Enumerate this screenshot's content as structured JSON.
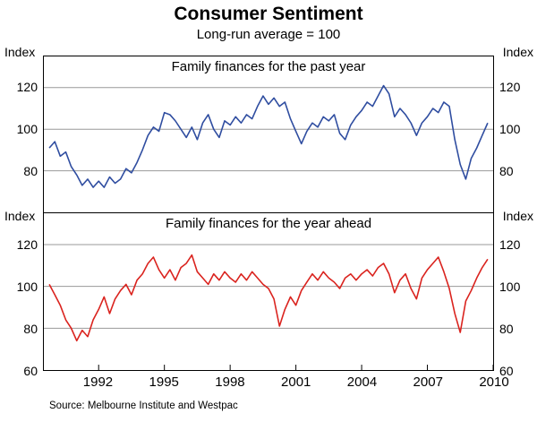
{
  "title": "Consumer Sentiment",
  "subtitle": "Long-run average = 100",
  "source": "Source: Melbourne Institute and Westpac",
  "axis": {
    "index_label": "Index",
    "x_range": [
      1989.5,
      2010
    ],
    "x_ticks": [
      1992,
      1995,
      1998,
      2001,
      2004,
      2007,
      2010
    ],
    "grid_color": "#999999",
    "box_color": "#000000"
  },
  "chart_data": [
    {
      "type": "line",
      "title": "Family finances for the past year",
      "color": "#2f4da0",
      "ylim": [
        60,
        135
      ],
      "yticks": [
        80,
        100,
        120
      ],
      "x_start": 1989.75,
      "x_step": 0.25,
      "values": [
        91,
        94,
        87,
        89,
        82,
        78,
        73,
        76,
        72,
        75,
        72,
        77,
        74,
        76,
        81,
        79,
        84,
        90,
        97,
        101,
        99,
        108,
        107,
        104,
        100,
        96,
        101,
        95,
        103,
        107,
        100,
        96,
        104,
        102,
        106,
        103,
        107,
        105,
        111,
        116,
        112,
        115,
        111,
        113,
        105,
        99,
        93,
        99,
        103,
        101,
        106,
        104,
        107,
        98,
        95,
        102,
        106,
        109,
        113,
        111,
        116,
        121,
        117,
        106,
        110,
        107,
        103,
        97,
        103,
        106,
        110,
        108,
        113,
        111,
        95,
        83,
        76,
        86,
        91,
        97,
        103
      ]
    },
    {
      "type": "line",
      "title": "Family finances for the year ahead",
      "color": "#da231e",
      "ylim": [
        60,
        135
      ],
      "yticks": [
        60,
        80,
        100,
        120
      ],
      "x_start": 1989.75,
      "x_step": 0.25,
      "values": [
        101,
        96,
        91,
        84,
        80,
        74,
        79,
        76,
        84,
        89,
        95,
        87,
        94,
        98,
        101,
        96,
        103,
        106,
        111,
        114,
        108,
        104,
        108,
        103,
        109,
        111,
        115,
        107,
        104,
        101,
        106,
        103,
        107,
        104,
        102,
        106,
        103,
        107,
        104,
        101,
        99,
        94,
        81,
        89,
        95,
        91,
        98,
        102,
        106,
        103,
        107,
        104,
        102,
        99,
        104,
        106,
        103,
        106,
        108,
        105,
        109,
        111,
        106,
        97,
        103,
        106,
        99,
        94,
        104,
        108,
        111,
        114,
        107,
        99,
        87,
        78,
        93,
        98,
        104,
        109,
        113
      ]
    }
  ]
}
